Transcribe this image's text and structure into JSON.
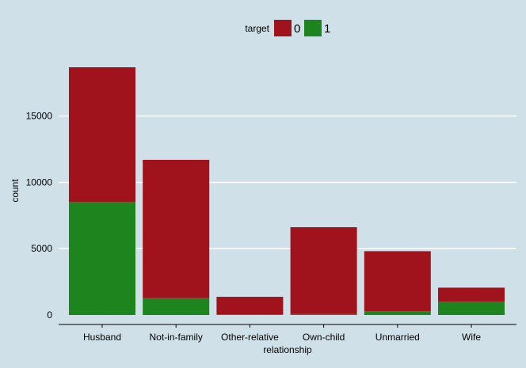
{
  "chart_data": {
    "type": "bar",
    "stacked": true,
    "title": "",
    "xlabel": "relationship",
    "ylabel": "count",
    "categories": [
      "Husband",
      "Not-in-family",
      "Other-relative",
      "Own-child",
      "Unmarried",
      "Wife"
    ],
    "series": [
      {
        "name": "1",
        "color": "#1e841e",
        "values": [
          8530,
          1270,
          40,
          70,
          280,
          1000
        ]
      },
      {
        "name": "0",
        "color": "#a0121c",
        "values": [
          10150,
          10430,
          1330,
          6550,
          4530,
          1060
        ]
      }
    ],
    "ylim": [
      0,
      18680
    ],
    "yticks": [
      0,
      5000,
      10000,
      15000
    ],
    "ytick_labels": [
      "0",
      "5000",
      "10000",
      "15000"
    ],
    "grid": true,
    "legend": {
      "title": "target",
      "position": "top-center",
      "entries": [
        {
          "label": "0",
          "color": "#a0121c"
        },
        {
          "label": "1",
          "color": "#1e841e"
        }
      ]
    },
    "background_color": "#cfe0e8",
    "grid_color": "#ffffff"
  }
}
